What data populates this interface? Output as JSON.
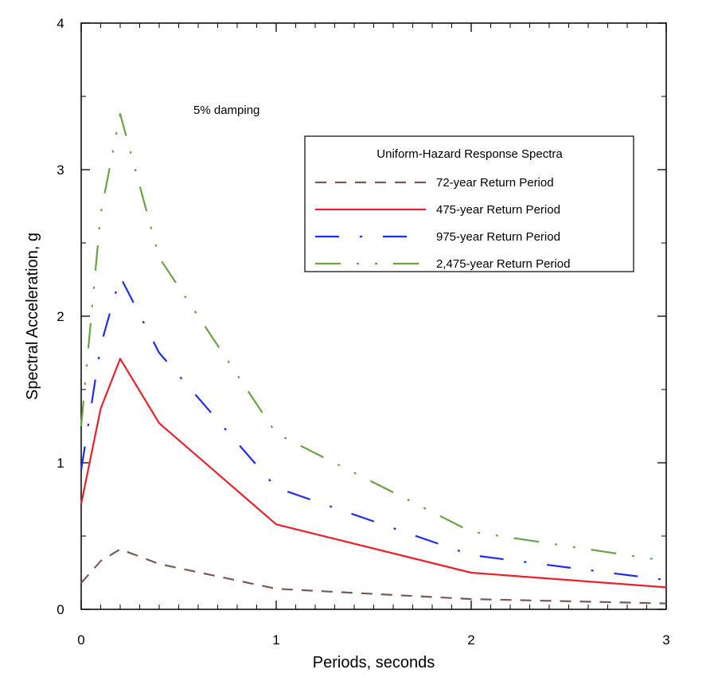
{
  "chart_data": {
    "type": "line",
    "title": "",
    "xlabel": "Periods, seconds",
    "ylabel": "Spectral Acceleration, g",
    "xlim": [
      0,
      3
    ],
    "ylim": [
      0,
      4
    ],
    "x_ticks": [
      "0",
      "1",
      "2",
      "3"
    ],
    "y_ticks": [
      "0",
      "1",
      "2",
      "3",
      "4"
    ],
    "grid": false,
    "annotation": "5% damping",
    "legend": {
      "title": "Uniform-Hazard Response Spectra",
      "placement": "upper-right"
    },
    "series": [
      {
        "name": "72-year Return Period",
        "color": "#7a5a55",
        "dash": "dashed",
        "points": [
          [
            0,
            0.18
          ],
          [
            0.1,
            0.33
          ],
          [
            0.2,
            0.41
          ],
          [
            0.4,
            0.31
          ],
          [
            1.0,
            0.14
          ],
          [
            2.0,
            0.07
          ],
          [
            3.0,
            0.04
          ]
        ]
      },
      {
        "name": "475-year Return Period",
        "color": "#e8212a",
        "dash": "solid",
        "points": [
          [
            0,
            0.72
          ],
          [
            0.1,
            1.37
          ],
          [
            0.2,
            1.71
          ],
          [
            0.4,
            1.27
          ],
          [
            1.0,
            0.58
          ],
          [
            2.0,
            0.25
          ],
          [
            3.0,
            0.15
          ]
        ]
      },
      {
        "name": "975-year Return Period",
        "color": "#1f2cf2",
        "dash": "dash-dot",
        "points": [
          [
            0,
            0.95
          ],
          [
            0.1,
            1.8
          ],
          [
            0.2,
            2.27
          ],
          [
            0.4,
            1.75
          ],
          [
            1.0,
            0.83
          ],
          [
            2.0,
            0.37
          ],
          [
            3.0,
            0.2
          ]
        ]
      },
      {
        "name": "2,475-year Return Period",
        "color": "#6aa246",
        "dash": "dash-dot-dot",
        "points": [
          [
            0,
            1.25
          ],
          [
            0.1,
            2.7
          ],
          [
            0.2,
            3.38
          ],
          [
            0.4,
            2.4
          ],
          [
            1.0,
            1.2
          ],
          [
            2.0,
            0.53
          ],
          [
            3.0,
            0.33
          ]
        ]
      }
    ]
  }
}
